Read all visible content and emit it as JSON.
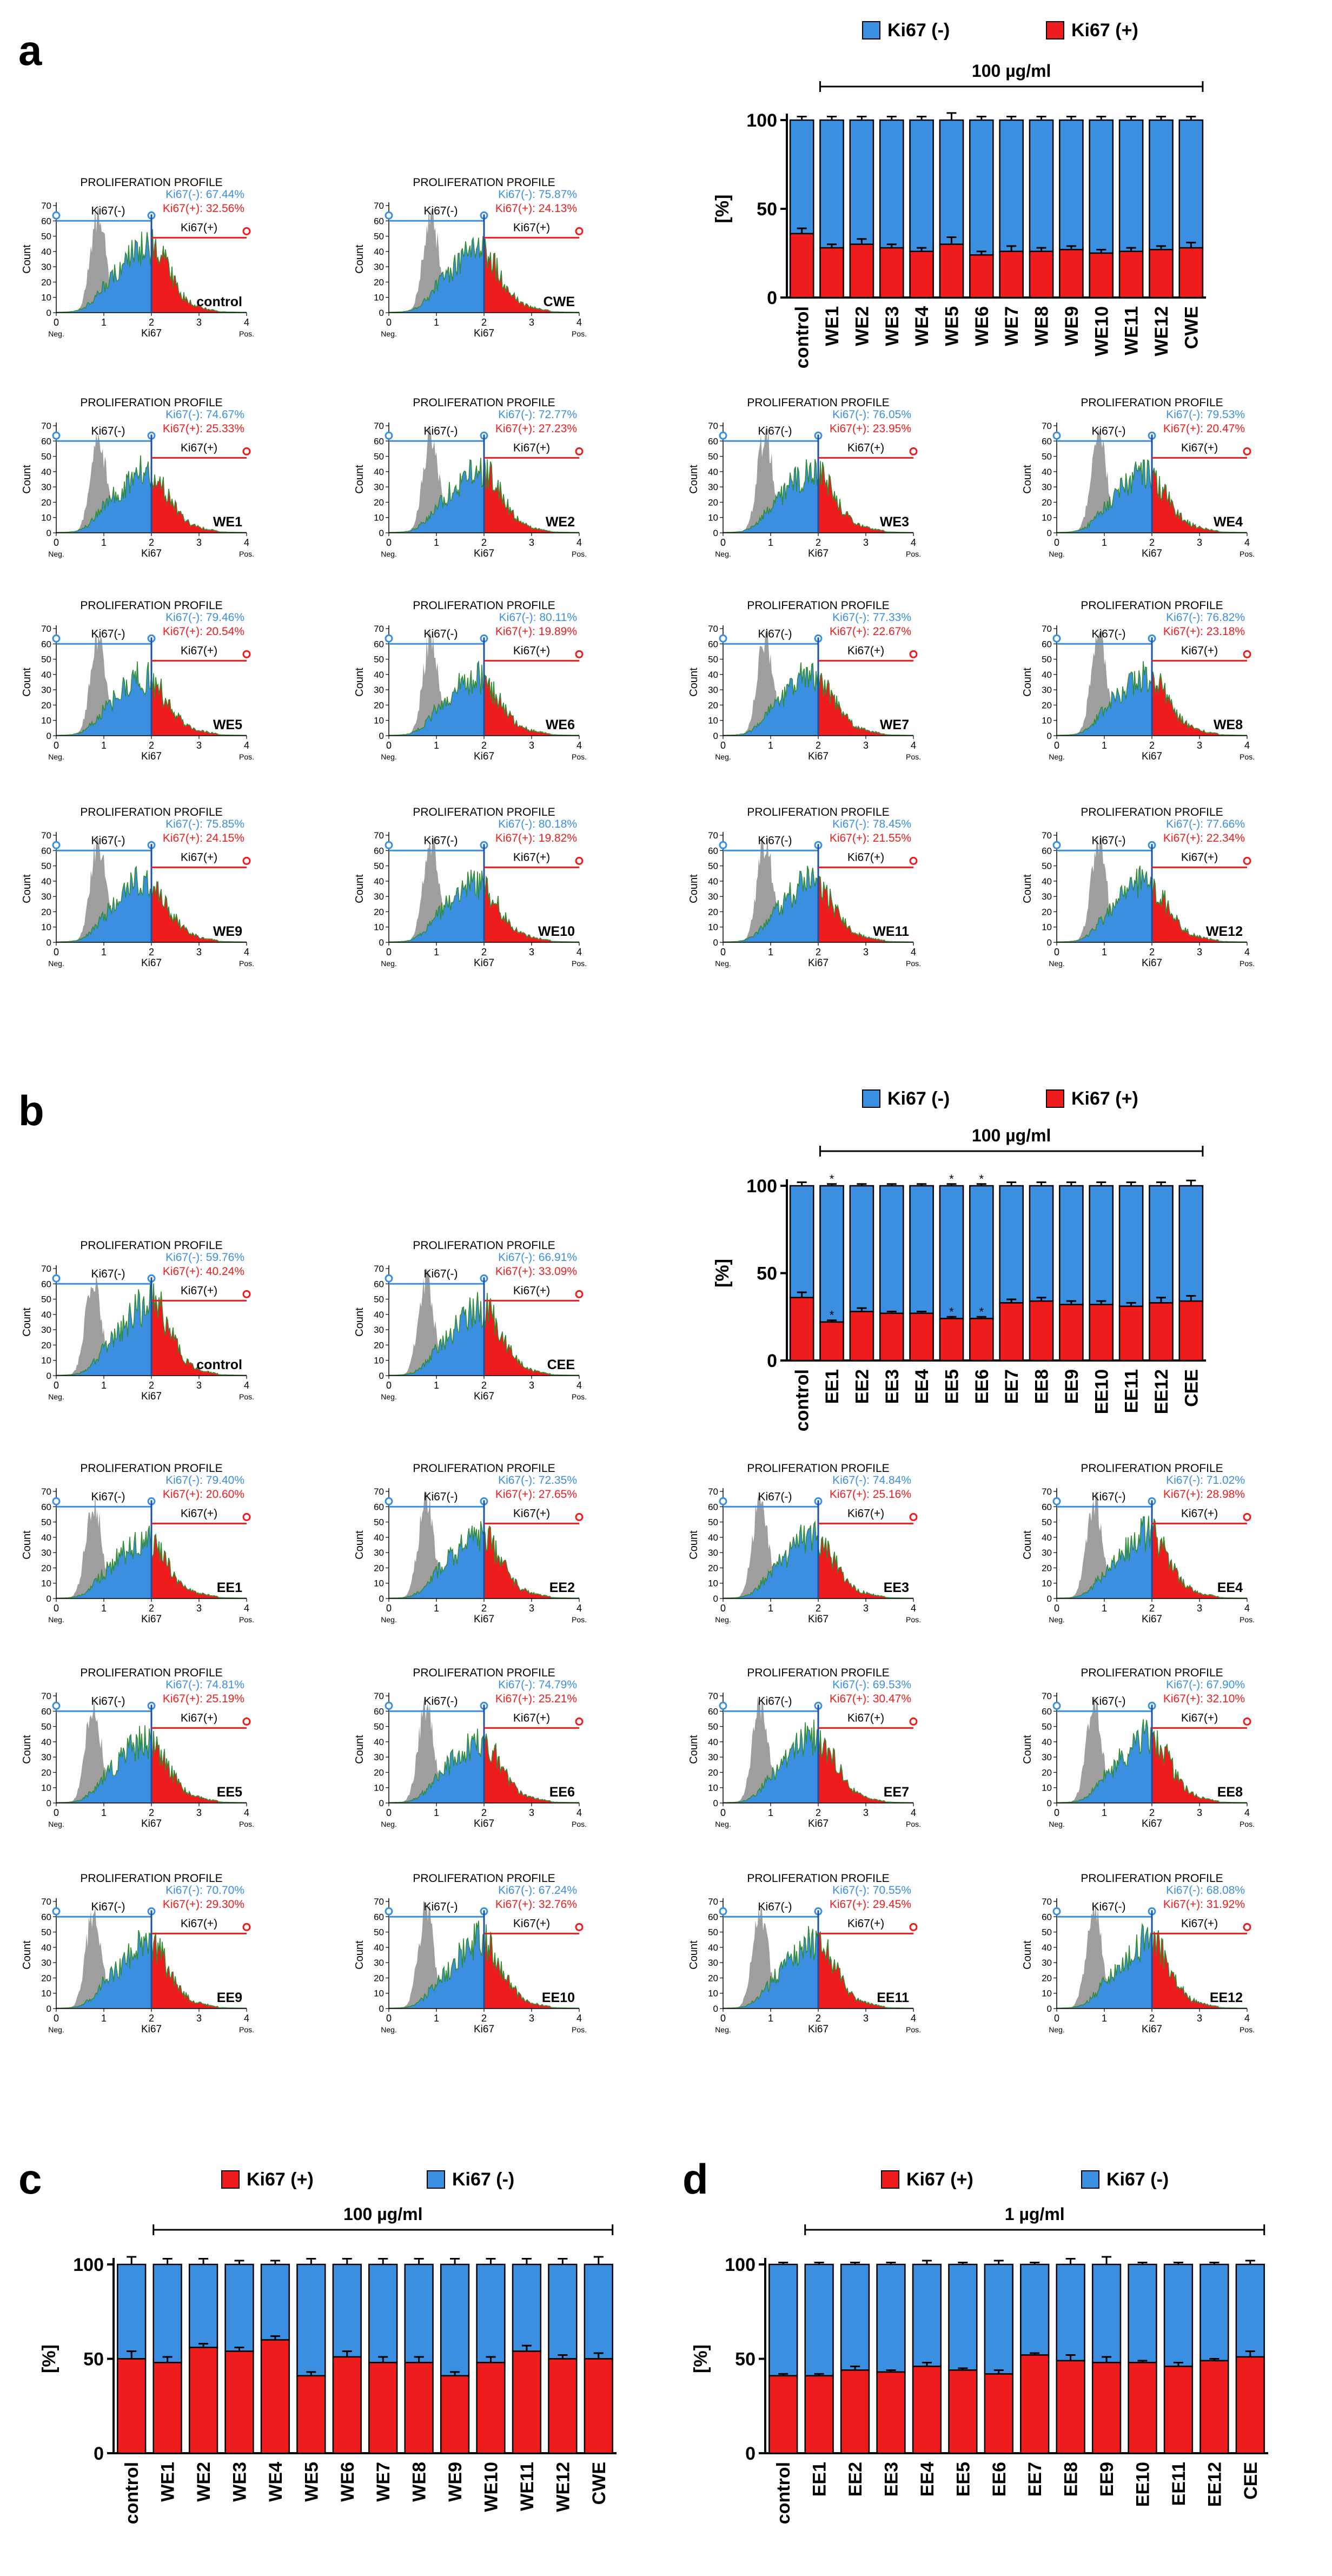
{
  "colors": {
    "neg": "#3b8fe0",
    "pos": "#ee1c1c",
    "gray": "#9e9e9e",
    "green": "#2e8b2e",
    "dark": "#1a4fa8",
    "axis": "#000000"
  },
  "panels": {
    "a": {
      "letter": "a",
      "treated": "WE",
      "ctrl2": "CWE"
    },
    "b": {
      "letter": "b",
      "treated": "EE",
      "ctrl2": "CEE"
    },
    "c": {
      "letter": "c"
    },
    "d": {
      "letter": "d"
    }
  },
  "hist_labels": {
    "title": "PROLIFERATION PROFILE",
    "count": "Count",
    "x_label": "Ki67",
    "neg_end": "Neg.",
    "pos_end": "Pos.",
    "neg_gate": "Ki67(-)",
    "pos_gate": "Ki67(+)",
    "neg_prefix": "Ki67(-): ",
    "pos_prefix": "Ki67(+): ",
    "y_ticks": [
      "0",
      "10",
      "20",
      "30",
      "40",
      "50",
      "60",
      "70"
    ],
    "x_ticks": [
      "0",
      "1",
      "2",
      "3",
      "4"
    ]
  },
  "histograms_a": [
    {
      "label": "control",
      "neg": "67.44%",
      "pos": "32.56%"
    },
    {
      "label": "CWE",
      "neg": "75.87%",
      "pos": "24.13%"
    },
    {
      "label": "WE1",
      "neg": "74.67%",
      "pos": "25.33%"
    },
    {
      "label": "WE2",
      "neg": "72.77%",
      "pos": "27.23%"
    },
    {
      "label": "WE3",
      "neg": "76.05%",
      "pos": "23.95%"
    },
    {
      "label": "WE4",
      "neg": "79.53%",
      "pos": "20.47%"
    },
    {
      "label": "WE5",
      "neg": "79.46%",
      "pos": "20.54%"
    },
    {
      "label": "WE6",
      "neg": "80.11%",
      "pos": "19.89%"
    },
    {
      "label": "WE7",
      "neg": "77.33%",
      "pos": "22.67%"
    },
    {
      "label": "WE8",
      "neg": "76.82%",
      "pos": "23.18%"
    },
    {
      "label": "WE9",
      "neg": "75.85%",
      "pos": "24.15%"
    },
    {
      "label": "WE10",
      "neg": "80.18%",
      "pos": "19.82%"
    },
    {
      "label": "WE11",
      "neg": "78.45%",
      "pos": "21.55%"
    },
    {
      "label": "WE12",
      "neg": "77.66%",
      "pos": "22.34%"
    }
  ],
  "histograms_b": [
    {
      "label": "control",
      "neg": "59.76%",
      "pos": "40.24%"
    },
    {
      "label": "CEE",
      "neg": "66.91%",
      "pos": "33.09%"
    },
    {
      "label": "EE1",
      "neg": "79.40%",
      "pos": "20.60%"
    },
    {
      "label": "EE2",
      "neg": "72.35%",
      "pos": "27.65%"
    },
    {
      "label": "EE3",
      "neg": "74.84%",
      "pos": "25.16%"
    },
    {
      "label": "EE4",
      "neg": "71.02%",
      "pos": "28.98%"
    },
    {
      "label": "EE5",
      "neg": "74.81%",
      "pos": "25.19%"
    },
    {
      "label": "EE6",
      "neg": "74.79%",
      "pos": "25.21%"
    },
    {
      "label": "EE7",
      "neg": "69.53%",
      "pos": "30.47%"
    },
    {
      "label": "EE8",
      "neg": "67.90%",
      "pos": "32.10%"
    },
    {
      "label": "EE9",
      "neg": "70.70%",
      "pos": "29.30%"
    },
    {
      "label": "EE10",
      "neg": "67.24%",
      "pos": "32.76%"
    },
    {
      "label": "EE11",
      "neg": "70.55%",
      "pos": "29.45%"
    },
    {
      "label": "EE12",
      "neg": "68.08%",
      "pos": "31.92%"
    }
  ],
  "chart_data": [
    {
      "id": "a",
      "type": "bar",
      "stacked": true,
      "categories": [
        "control",
        "WE1",
        "WE2",
        "WE3",
        "WE4",
        "WE5",
        "WE6",
        "WE7",
        "WE8",
        "WE9",
        "WE10",
        "WE11",
        "WE12",
        "CWE"
      ],
      "series": [
        {
          "name": "Ki67 (+)",
          "color": "#ee1c1c",
          "values": [
            36,
            28,
            30,
            28,
            26,
            30,
            24,
            26,
            26,
            27,
            25,
            26,
            27,
            28
          ]
        },
        {
          "name": "Ki67 (-)",
          "color": "#3b8fe0",
          "values": [
            64,
            72,
            70,
            72,
            74,
            70,
            76,
            74,
            74,
            73,
            75,
            74,
            73,
            72
          ]
        }
      ],
      "errors_top": [
        2,
        2,
        2,
        2,
        2,
        4,
        2,
        2,
        2,
        2,
        2,
        2,
        2,
        2
      ],
      "errors_pos": [
        3,
        2,
        3,
        2,
        2,
        4,
        2,
        3,
        2,
        2,
        2,
        2,
        2,
        3
      ],
      "stars_top": [],
      "stars_pos": [],
      "legend": [
        "Ki67 (-)",
        "Ki67 (+)"
      ],
      "bracket": "100 µg/ml",
      "ylabel": "[%]",
      "ylim": [
        0,
        100
      ],
      "yticks": [
        "0",
        "50",
        "100"
      ]
    },
    {
      "id": "b",
      "type": "bar",
      "stacked": true,
      "categories": [
        "control",
        "EE1",
        "EE2",
        "EE3",
        "EE4",
        "EE5",
        "EE6",
        "EE7",
        "EE8",
        "EE9",
        "EE10",
        "EE11",
        "EE12",
        "CEE"
      ],
      "series": [
        {
          "name": "Ki67 (+)",
          "color": "#ee1c1c",
          "values": [
            36,
            22,
            28,
            27,
            27,
            24,
            24,
            33,
            34,
            32,
            32,
            31,
            33,
            34
          ]
        },
        {
          "name": "Ki67 (-)",
          "color": "#3b8fe0",
          "values": [
            64,
            78,
            72,
            73,
            73,
            76,
            76,
            67,
            66,
            68,
            68,
            69,
            67,
            66
          ]
        }
      ],
      "errors_top": [
        2,
        1,
        1,
        1,
        1,
        1,
        1,
        2,
        2,
        2,
        2,
        2,
        2,
        3
      ],
      "errors_pos": [
        3,
        1,
        2,
        1,
        1,
        1,
        1,
        2,
        2,
        2,
        2,
        2,
        3,
        3
      ],
      "stars_top": [
        1,
        5,
        6
      ],
      "stars_pos": [
        1,
        5,
        6
      ],
      "star_mark": "*",
      "legend": [
        "Ki67 (-)",
        "Ki67 (+)"
      ],
      "bracket": "100 µg/ml",
      "ylabel": "[%]",
      "ylim": [
        0,
        100
      ],
      "yticks": [
        "0",
        "50",
        "100"
      ]
    },
    {
      "id": "c",
      "type": "bar",
      "stacked": true,
      "categories": [
        "control",
        "WE1",
        "WE2",
        "WE3",
        "WE4",
        "WE5",
        "WE6",
        "WE7",
        "WE8",
        "WE9",
        "WE10",
        "WE11",
        "WE12",
        "CWE"
      ],
      "series": [
        {
          "name": "Ki67 (+)",
          "color": "#ee1c1c",
          "values": [
            50,
            48,
            56,
            54,
            60,
            41,
            51,
            48,
            48,
            41,
            48,
            54,
            50,
            50
          ]
        },
        {
          "name": "Ki67 (-)",
          "color": "#3b8fe0",
          "values": [
            50,
            52,
            44,
            46,
            40,
            59,
            49,
            52,
            52,
            59,
            52,
            46,
            50,
            50
          ]
        }
      ],
      "errors_top": [
        4,
        3,
        3,
        2,
        2,
        3,
        3,
        3,
        3,
        3,
        3,
        3,
        3,
        4
      ],
      "errors_pos": [
        4,
        3,
        2,
        2,
        2,
        2,
        3,
        3,
        3,
        2,
        3,
        3,
        2,
        3
      ],
      "stars_top": [],
      "stars_pos": [],
      "legend": [
        "Ki67 (+)",
        "Ki67 (-)"
      ],
      "bracket": "100 µg/ml",
      "ylabel": "[%]",
      "ylim": [
        0,
        100
      ],
      "yticks": [
        "0",
        "50",
        "100"
      ]
    },
    {
      "id": "d",
      "type": "bar",
      "stacked": true,
      "categories": [
        "control",
        "EE1",
        "EE2",
        "EE3",
        "EE4",
        "EE5",
        "EE6",
        "EE7",
        "EE8",
        "EE9",
        "EE10",
        "EE11",
        "EE12",
        "CEE"
      ],
      "series": [
        {
          "name": "Ki67 (+)",
          "color": "#ee1c1c",
          "values": [
            41,
            41,
            44,
            43,
            46,
            44,
            42,
            52,
            49,
            48,
            48,
            46,
            49,
            51
          ]
        },
        {
          "name": "Ki67 (-)",
          "color": "#3b8fe0",
          "values": [
            59,
            59,
            56,
            57,
            54,
            56,
            58,
            48,
            51,
            52,
            52,
            54,
            51,
            49
          ]
        }
      ],
      "errors_top": [
        1,
        1,
        1,
        1,
        2,
        1,
        2,
        1,
        3,
        4,
        1,
        1,
        1,
        2
      ],
      "errors_pos": [
        1,
        1,
        2,
        1,
        2,
        1,
        2,
        1,
        3,
        3,
        1,
        2,
        1,
        3
      ],
      "stars_top": [],
      "stars_pos": [],
      "legend": [
        "Ki67 (+)",
        "Ki67 (-)"
      ],
      "bracket": "1 µg/ml",
      "ylabel": "[%]",
      "ylim": [
        0,
        100
      ],
      "yticks": [
        "0",
        "50",
        "100"
      ]
    }
  ]
}
